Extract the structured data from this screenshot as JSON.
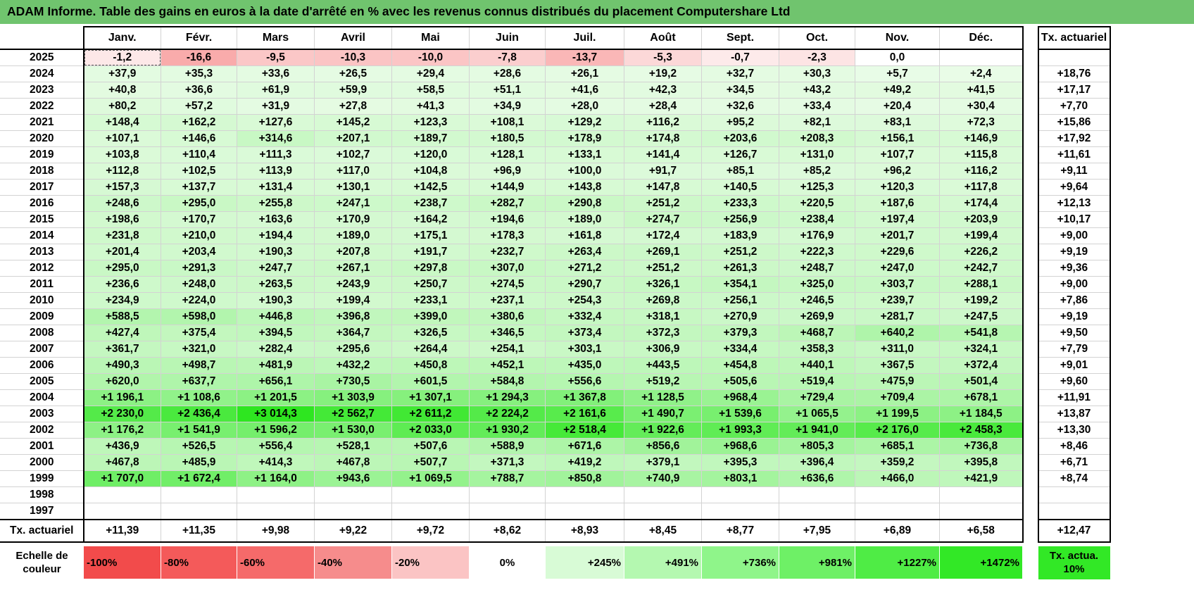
{
  "title": "ADAM Informe. Table des gains en euros à la date d'arrêté en % avec les revenus connus distribués du placement Computershare Ltd",
  "months": [
    "Janv.",
    "Févr.",
    "Mars",
    "Avril",
    "Mai",
    "Juin",
    "Juil.",
    "Août",
    "Sept.",
    "Oct.",
    "Nov.",
    "Déc."
  ],
  "tx_header": "Tx. actuariel",
  "rows": [
    {
      "year": "2025",
      "values": [
        "-1,2",
        "-16,6",
        "-9,5",
        "-10,3",
        "-10,0",
        "-7,8",
        "-13,7",
        "-5,3",
        "-0,7",
        "-2,3",
        "0,0",
        ""
      ],
      "tx": ""
    },
    {
      "year": "2024",
      "values": [
        "+37,9",
        "+35,3",
        "+33,6",
        "+26,5",
        "+29,4",
        "+28,6",
        "+26,1",
        "+19,2",
        "+32,7",
        "+30,3",
        "+5,7",
        "+2,4"
      ],
      "tx": "+18,76"
    },
    {
      "year": "2023",
      "values": [
        "+40,8",
        "+36,6",
        "+61,9",
        "+59,9",
        "+58,5",
        "+51,1",
        "+41,6",
        "+42,3",
        "+34,5",
        "+43,2",
        "+49,2",
        "+41,5"
      ],
      "tx": "+17,17"
    },
    {
      "year": "2022",
      "values": [
        "+80,2",
        "+57,2",
        "+31,9",
        "+27,8",
        "+41,3",
        "+34,9",
        "+28,0",
        "+28,4",
        "+32,6",
        "+33,4",
        "+20,4",
        "+30,4"
      ],
      "tx": "+7,70"
    },
    {
      "year": "2021",
      "values": [
        "+148,4",
        "+162,2",
        "+127,6",
        "+145,2",
        "+123,3",
        "+108,1",
        "+129,2",
        "+116,2",
        "+95,2",
        "+82,1",
        "+83,1",
        "+72,3"
      ],
      "tx": "+15,86"
    },
    {
      "year": "2020",
      "values": [
        "+107,1",
        "+146,6",
        "+314,6",
        "+207,1",
        "+189,7",
        "+180,5",
        "+178,9",
        "+174,8",
        "+203,6",
        "+208,3",
        "+156,1",
        "+146,9"
      ],
      "tx": "+17,92"
    },
    {
      "year": "2019",
      "values": [
        "+103,8",
        "+110,4",
        "+111,3",
        "+102,7",
        "+120,0",
        "+128,1",
        "+133,1",
        "+141,4",
        "+126,7",
        "+131,0",
        "+107,7",
        "+115,8"
      ],
      "tx": "+11,61"
    },
    {
      "year": "2018",
      "values": [
        "+112,8",
        "+102,5",
        "+113,9",
        "+117,0",
        "+104,8",
        "+96,9",
        "+100,0",
        "+91,7",
        "+85,1",
        "+85,2",
        "+96,2",
        "+116,2"
      ],
      "tx": "+9,11"
    },
    {
      "year": "2017",
      "values": [
        "+157,3",
        "+137,7",
        "+131,4",
        "+130,1",
        "+142,5",
        "+144,9",
        "+143,8",
        "+147,8",
        "+140,5",
        "+125,3",
        "+120,3",
        "+117,8"
      ],
      "tx": "+9,64"
    },
    {
      "year": "2016",
      "values": [
        "+248,6",
        "+295,0",
        "+255,8",
        "+247,1",
        "+238,7",
        "+282,7",
        "+290,8",
        "+251,2",
        "+233,3",
        "+220,5",
        "+187,6",
        "+174,4"
      ],
      "tx": "+12,13"
    },
    {
      "year": "2015",
      "values": [
        "+198,6",
        "+170,7",
        "+163,6",
        "+170,9",
        "+164,2",
        "+194,6",
        "+189,0",
        "+274,7",
        "+256,9",
        "+238,4",
        "+197,4",
        "+203,9"
      ],
      "tx": "+10,17"
    },
    {
      "year": "2014",
      "values": [
        "+231,8",
        "+210,0",
        "+194,4",
        "+189,0",
        "+175,1",
        "+178,3",
        "+161,8",
        "+172,4",
        "+183,9",
        "+176,9",
        "+201,7",
        "+199,4"
      ],
      "tx": "+9,00"
    },
    {
      "year": "2013",
      "values": [
        "+201,4",
        "+203,4",
        "+190,3",
        "+207,8",
        "+191,7",
        "+232,7",
        "+263,4",
        "+269,1",
        "+251,2",
        "+222,3",
        "+229,6",
        "+226,2"
      ],
      "tx": "+9,19"
    },
    {
      "year": "2012",
      "values": [
        "+295,0",
        "+291,3",
        "+247,7",
        "+267,1",
        "+297,8",
        "+307,0",
        "+271,2",
        "+251,2",
        "+261,3",
        "+248,7",
        "+247,0",
        "+242,7"
      ],
      "tx": "+9,36"
    },
    {
      "year": "2011",
      "values": [
        "+236,6",
        "+248,0",
        "+263,5",
        "+243,9",
        "+250,7",
        "+274,5",
        "+290,7",
        "+326,1",
        "+354,1",
        "+325,0",
        "+303,7",
        "+288,1"
      ],
      "tx": "+9,00"
    },
    {
      "year": "2010",
      "values": [
        "+234,9",
        "+224,0",
        "+190,3",
        "+199,4",
        "+233,1",
        "+237,1",
        "+254,3",
        "+269,8",
        "+256,1",
        "+246,5",
        "+239,7",
        "+199,2"
      ],
      "tx": "+7,86"
    },
    {
      "year": "2009",
      "values": [
        "+588,5",
        "+598,0",
        "+446,8",
        "+396,8",
        "+399,0",
        "+380,6",
        "+332,4",
        "+318,1",
        "+270,9",
        "+269,9",
        "+281,7",
        "+247,5"
      ],
      "tx": "+9,19"
    },
    {
      "year": "2008",
      "values": [
        "+427,4",
        "+375,4",
        "+394,5",
        "+364,7",
        "+326,5",
        "+346,5",
        "+373,4",
        "+372,3",
        "+379,3",
        "+468,7",
        "+640,2",
        "+541,8"
      ],
      "tx": "+9,50"
    },
    {
      "year": "2007",
      "values": [
        "+361,7",
        "+321,0",
        "+282,4",
        "+295,6",
        "+264,4",
        "+254,1",
        "+303,1",
        "+306,9",
        "+334,4",
        "+358,3",
        "+311,0",
        "+324,1"
      ],
      "tx": "+7,79"
    },
    {
      "year": "2006",
      "values": [
        "+490,3",
        "+498,7",
        "+481,9",
        "+432,2",
        "+450,8",
        "+452,1",
        "+435,0",
        "+443,5",
        "+454,8",
        "+440,1",
        "+367,5",
        "+372,4"
      ],
      "tx": "+9,01"
    },
    {
      "year": "2005",
      "values": [
        "+620,0",
        "+637,7",
        "+656,1",
        "+730,5",
        "+601,5",
        "+584,8",
        "+556,6",
        "+519,2",
        "+505,6",
        "+519,4",
        "+475,9",
        "+501,4"
      ],
      "tx": "+9,60"
    },
    {
      "year": "2004",
      "values": [
        "+1 196,1",
        "+1 108,6",
        "+1 201,5",
        "+1 303,9",
        "+1 307,1",
        "+1 294,3",
        "+1 367,8",
        "+1 128,5",
        "+968,4",
        "+729,4",
        "+709,4",
        "+678,1"
      ],
      "tx": "+11,91"
    },
    {
      "year": "2003",
      "values": [
        "+2 230,0",
        "+2 436,4",
        "+3 014,3",
        "+2 562,7",
        "+2 611,2",
        "+2 224,2",
        "+2 161,6",
        "+1 490,7",
        "+1 539,6",
        "+1 065,5",
        "+1 199,5",
        "+1 184,5"
      ],
      "tx": "+13,87"
    },
    {
      "year": "2002",
      "values": [
        "+1 176,2",
        "+1 541,9",
        "+1 596,2",
        "+1 530,0",
        "+2 033,0",
        "+1 930,2",
        "+2 518,4",
        "+1 922,6",
        "+1 993,3",
        "+1 941,0",
        "+2 176,0",
        "+2 458,3"
      ],
      "tx": "+13,30"
    },
    {
      "year": "2001",
      "values": [
        "+436,9",
        "+526,5",
        "+556,4",
        "+528,1",
        "+507,6",
        "+588,9",
        "+671,6",
        "+856,6",
        "+968,6",
        "+805,3",
        "+685,1",
        "+736,8"
      ],
      "tx": "+8,46"
    },
    {
      "year": "2000",
      "values": [
        "+467,8",
        "+485,9",
        "+414,3",
        "+467,8",
        "+507,7",
        "+371,3",
        "+419,2",
        "+379,1",
        "+395,3",
        "+396,4",
        "+359,2",
        "+395,8"
      ],
      "tx": "+6,71"
    },
    {
      "year": "1999",
      "values": [
        "+1 707,0",
        "+1 672,4",
        "+1 164,0",
        "+943,6",
        "+1 069,5",
        "+788,7",
        "+850,8",
        "+740,9",
        "+803,1",
        "+636,6",
        "+466,0",
        "+421,9"
      ],
      "tx": "+8,74"
    },
    {
      "year": "1998",
      "values": [
        "",
        "",
        "",
        "",
        "",
        "",
        "",
        "",
        "",
        "",
        "",
        ""
      ],
      "tx": ""
    },
    {
      "year": "1997",
      "values": [
        "",
        "",
        "",
        "",
        "",
        "",
        "",
        "",
        "",
        "",
        "",
        ""
      ],
      "tx": ""
    }
  ],
  "footer": {
    "label": "Tx. actuariel",
    "values": [
      "+11,39",
      "+11,35",
      "+9,98",
      "+9,22",
      "+9,72",
      "+8,62",
      "+8,93",
      "+8,45",
      "+8,77",
      "+7,95",
      "+6,89",
      "+6,58"
    ],
    "tx": "+12,47"
  },
  "scale": {
    "label": "Echelle de couleur",
    "steps": [
      {
        "label": "-100%",
        "color": "#f24b4b"
      },
      {
        "label": "-80%",
        "color": "#f45a5a"
      },
      {
        "label": "-60%",
        "color": "#f56a6a"
      },
      {
        "label": "-40%",
        "color": "#f68c8c"
      },
      {
        "label": "-20%",
        "color": "#fbc4c4"
      },
      {
        "label": "0%",
        "color": "#ffffff"
      },
      {
        "label": "+245%",
        "color": "#d8fbd6"
      },
      {
        "label": "+491%",
        "color": "#b4f8b0"
      },
      {
        "label": "+736%",
        "color": "#8ff58a"
      },
      {
        "label": "+981%",
        "color": "#6ef066"
      },
      {
        "label": "+1227%",
        "color": "#4fec45"
      },
      {
        "label": "+1472%",
        "color": "#32e826"
      }
    ],
    "tx_label": "Tx. actua. 10%",
    "tx_color": "#32e826"
  },
  "colors": {
    "title_bar": "#70c46e",
    "max_green": "#2ee620",
    "neg_red": "#f24b4b"
  }
}
